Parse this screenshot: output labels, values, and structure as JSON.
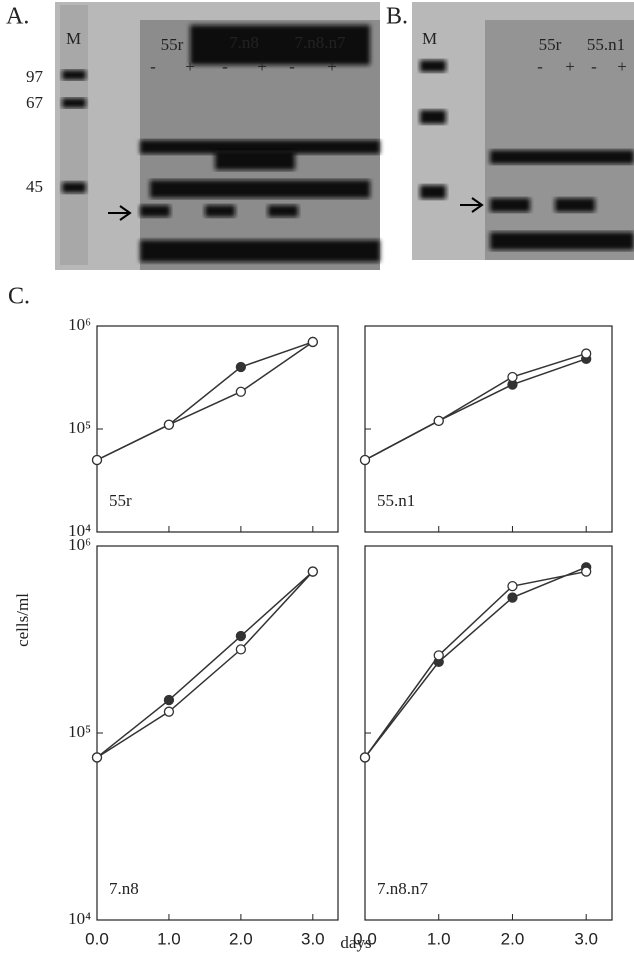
{
  "panel_a": {
    "label": "A.",
    "marker_lane": "M",
    "markers": [
      "97",
      "67",
      "45"
    ],
    "lanes": [
      "55r",
      "7.n8",
      "7.n8.n7"
    ],
    "conditions": [
      "-",
      "+",
      "-",
      "+",
      "-",
      "+"
    ]
  },
  "panel_b": {
    "label": "B.",
    "marker_lane": "M",
    "lanes": [
      "55r",
      "55.n1"
    ],
    "conditions": [
      "-",
      "+",
      "-",
      "+"
    ]
  },
  "panel_c": {
    "label": "C.",
    "ylabel": "cells/ml",
    "xlabel": "days"
  },
  "chart_data": [
    {
      "type": "line",
      "title": "55r",
      "log_y": true,
      "x": [
        0,
        1,
        2,
        3
      ],
      "xlim": [
        0,
        3.35
      ],
      "xticks": [
        0,
        1,
        2,
        3
      ],
      "ylim": [
        10000,
        1000000
      ],
      "yticks": [
        {
          "value": 10000,
          "label": "10⁴"
        },
        {
          "value": 100000,
          "label": "10⁵"
        },
        {
          "value": 1000000,
          "label": "10⁶"
        }
      ],
      "series": [
        {
          "color": "#333333",
          "marker": "filled",
          "values": [
            50000,
            110000,
            400000,
            700000
          ]
        },
        {
          "color": "#333333",
          "marker": "open",
          "values": [
            50000,
            110000,
            230000,
            700000
          ]
        }
      ]
    },
    {
      "type": "line",
      "title": "55.n1",
      "log_y": true,
      "x": [
        0,
        1,
        2,
        3
      ],
      "xlim": [
        0,
        3.35
      ],
      "xticks": [
        0,
        1,
        2,
        3
      ],
      "ylim": [
        10000,
        1000000
      ],
      "yticks": [
        10000,
        100000,
        1000000
      ],
      "series": [
        {
          "color": "#333333",
          "marker": "filled",
          "values": [
            50000,
            120000,
            270000,
            480000
          ]
        },
        {
          "color": "#333333",
          "marker": "open",
          "values": [
            50000,
            120000,
            320000,
            540000
          ]
        }
      ]
    },
    {
      "type": "line",
      "title": "7.n8",
      "log_y": true,
      "x": [
        0,
        1,
        2,
        3
      ],
      "xlim": [
        0,
        3.35
      ],
      "xticks": [
        {
          "value": 0,
          "label": "0.0"
        },
        {
          "value": 1,
          "label": "1.0"
        },
        {
          "value": 2,
          "label": "2.0"
        },
        {
          "value": 3,
          "label": "3.0"
        }
      ],
      "ylim": [
        10000,
        1000000
      ],
      "yticks": [
        {
          "value": 10000,
          "label": "10⁴"
        },
        {
          "value": 100000,
          "label": "10⁵"
        },
        {
          "value": 1000000,
          "label": "10⁶"
        }
      ],
      "series": [
        {
          "color": "#333333",
          "marker": "filled",
          "values": [
            74000,
            150000,
            330000,
            730000
          ]
        },
        {
          "color": "#333333",
          "marker": "open",
          "values": [
            74000,
            130000,
            280000,
            730000
          ]
        }
      ]
    },
    {
      "type": "line",
      "title": "7.n8.n7",
      "log_y": true,
      "x": [
        0,
        1,
        2,
        3
      ],
      "xlim": [
        0,
        3.35
      ],
      "xticks": [
        {
          "value": 0,
          "label": "0.0"
        },
        {
          "value": 1,
          "label": "1.0"
        },
        {
          "value": 2,
          "label": "2.0"
        },
        {
          "value": 3,
          "label": "3.0"
        }
      ],
      "ylim": [
        10000,
        1000000
      ],
      "yticks": [
        10000,
        100000,
        1000000
      ],
      "series": [
        {
          "color": "#333333",
          "marker": "filled",
          "values": [
            74000,
            240000,
            530000,
            770000
          ]
        },
        {
          "color": "#333333",
          "marker": "open",
          "values": [
            74000,
            260000,
            610000,
            730000
          ]
        }
      ]
    }
  ]
}
